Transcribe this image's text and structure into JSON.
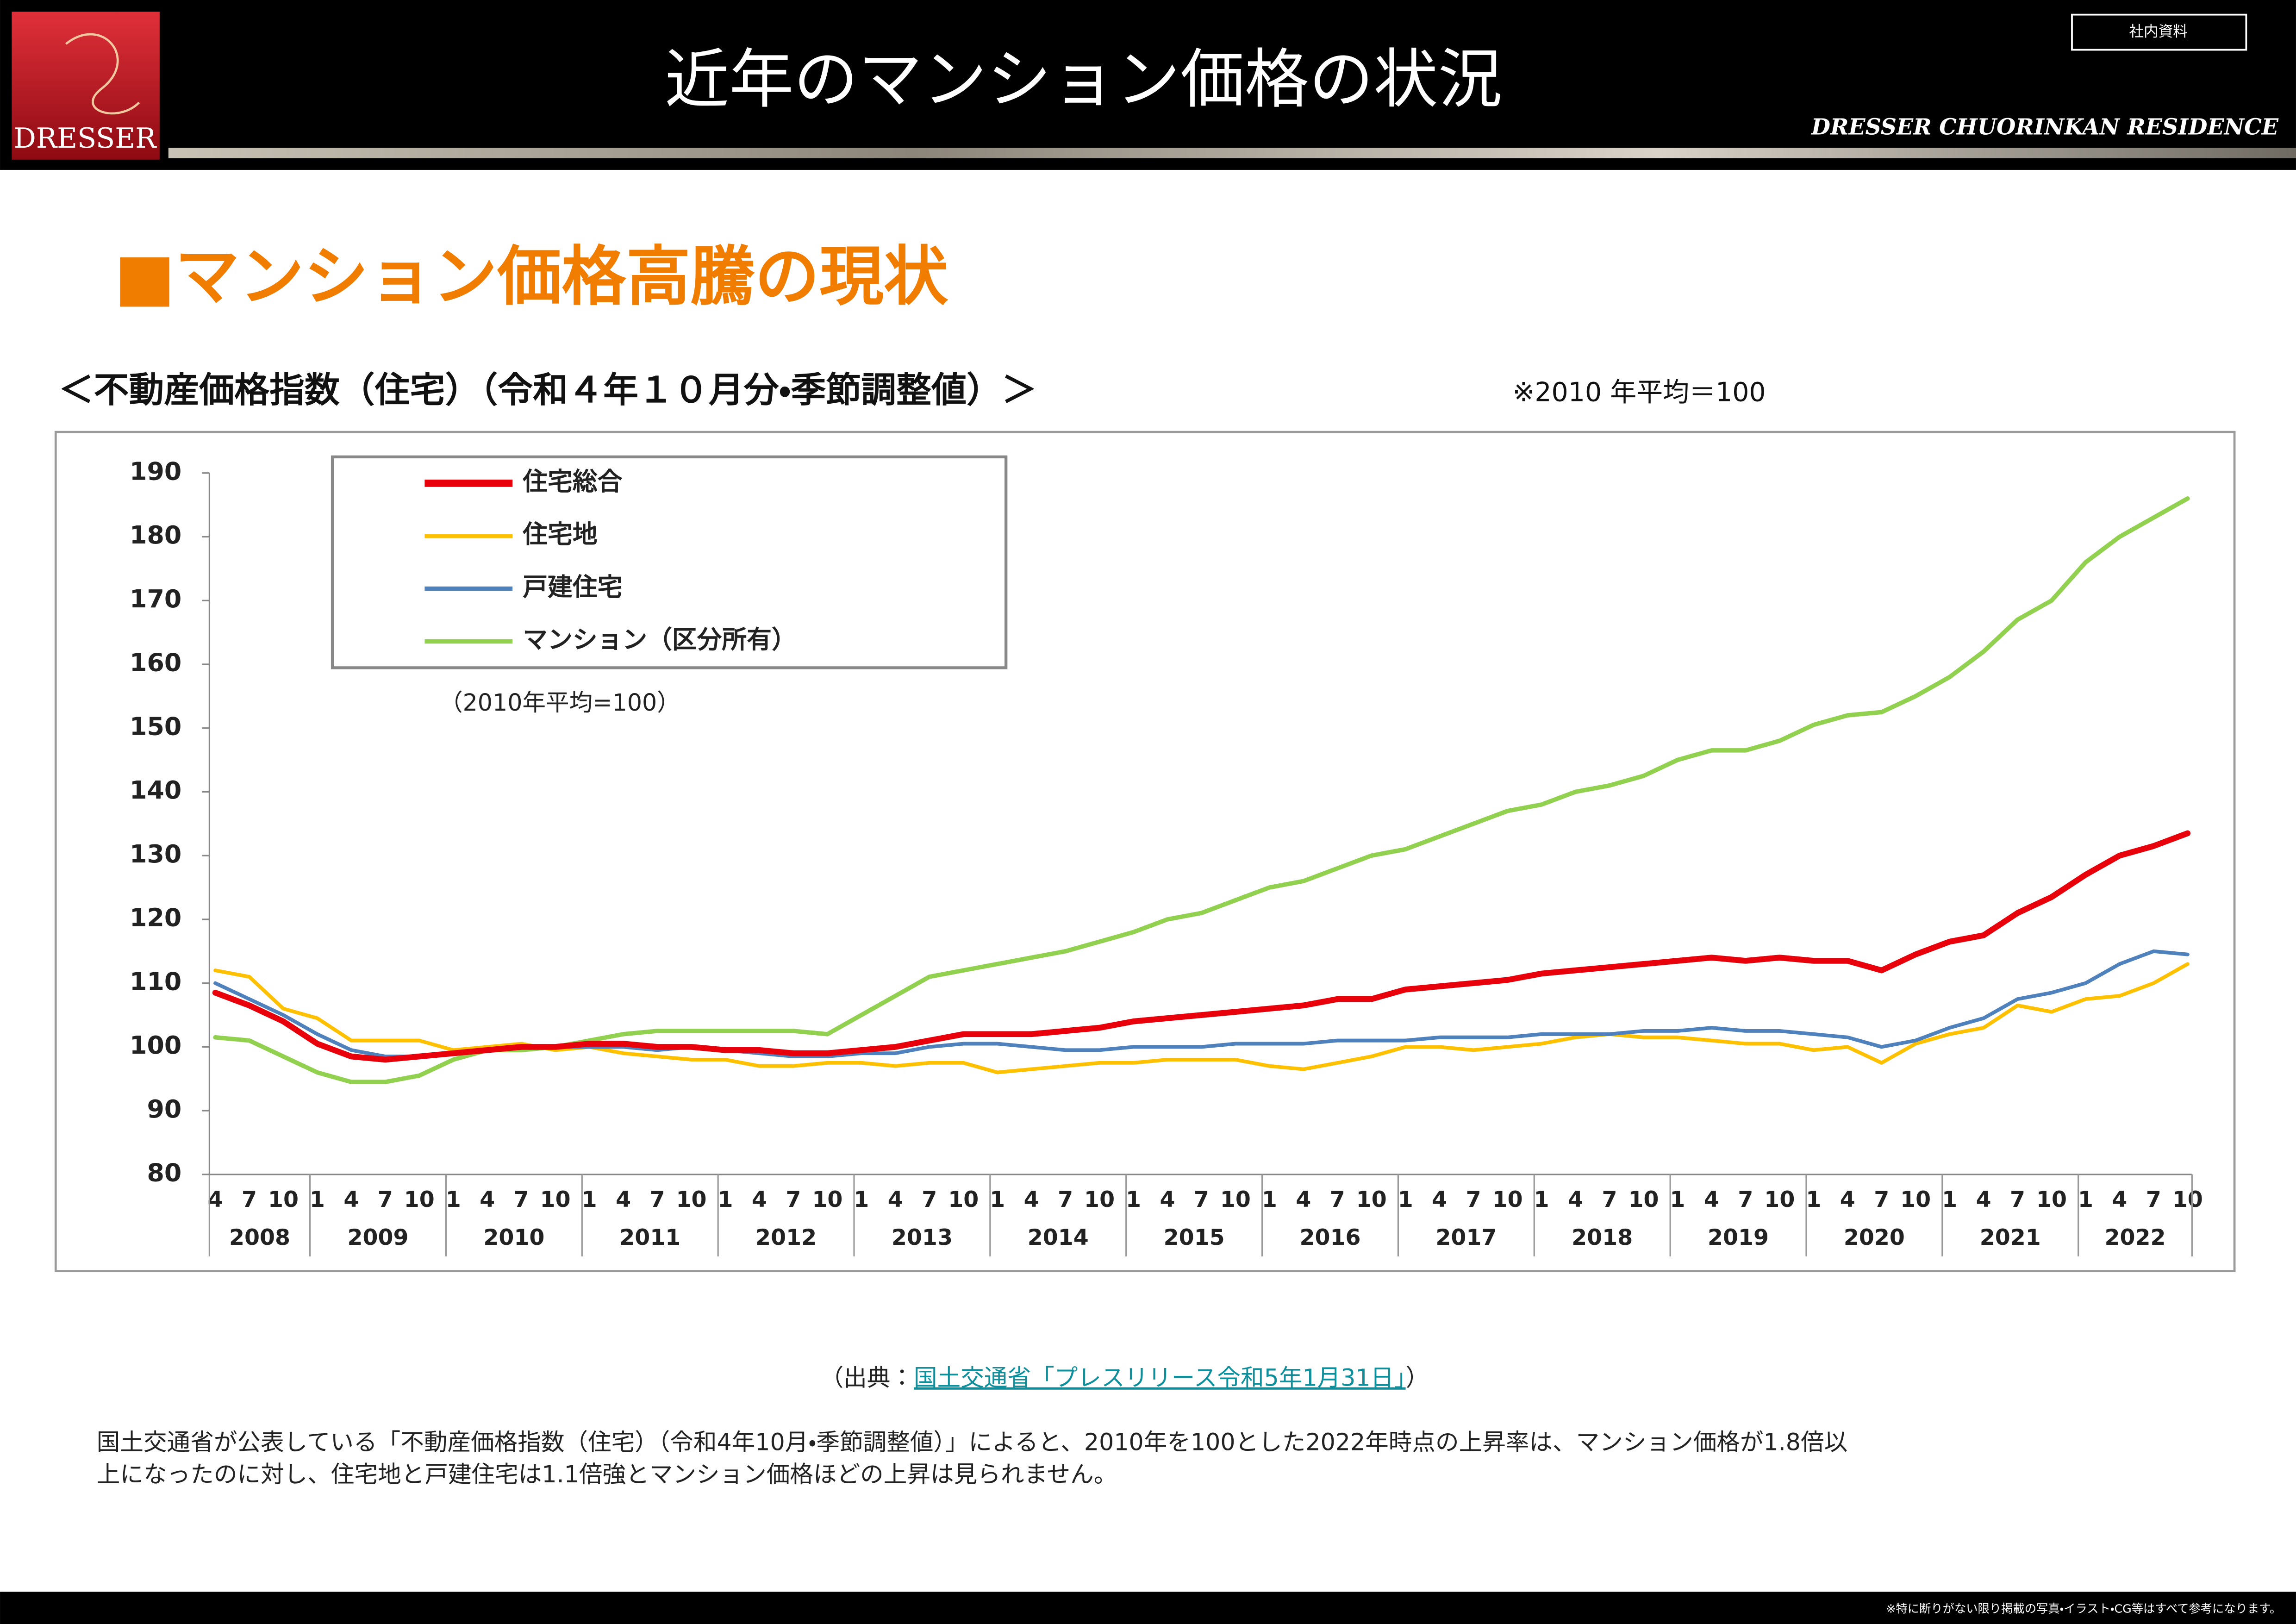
{
  "header": {
    "logo": "DRESSER",
    "title": "近年のマンション価格の状況",
    "badge": "社内資料",
    "residence": "DRESSER CHUORINKAN RESIDENCE"
  },
  "section_title": "■マンション価格高騰の現状",
  "chart_heading": "＜不動産価格指数（住宅）（令和４年１０月分・季節調整値）＞",
  "chart_note": "※2010 年平均＝100",
  "chart_data": {
    "type": "line",
    "annotation": "（2010年平均=100）",
    "years": [
      {
        "label": "2008",
        "months": [
          "4",
          "7",
          "10"
        ]
      },
      {
        "label": "2009",
        "months": [
          "1",
          "4",
          "7",
          "10"
        ]
      },
      {
        "label": "2010",
        "months": [
          "1",
          "4",
          "7",
          "10"
        ]
      },
      {
        "label": "2011",
        "months": [
          "1",
          "4",
          "7",
          "10"
        ]
      },
      {
        "label": "2012",
        "months": [
          "1",
          "4",
          "7",
          "10"
        ]
      },
      {
        "label": "2013",
        "months": [
          "1",
          "4",
          "7",
          "10"
        ]
      },
      {
        "label": "2014",
        "months": [
          "1",
          "4",
          "7",
          "10"
        ]
      },
      {
        "label": "2015",
        "months": [
          "1",
          "4",
          "7",
          "10"
        ]
      },
      {
        "label": "2016",
        "months": [
          "1",
          "4",
          "7",
          "10"
        ]
      },
      {
        "label": "2017",
        "months": [
          "1",
          "4",
          "7",
          "10"
        ]
      },
      {
        "label": "2018",
        "months": [
          "1",
          "4",
          "7",
          "10"
        ]
      },
      {
        "label": "2019",
        "months": [
          "1",
          "4",
          "7",
          "10"
        ]
      },
      {
        "label": "2020",
        "months": [
          "1",
          "4",
          "7",
          "10"
        ]
      },
      {
        "label": "2021",
        "months": [
          "1",
          "4",
          "7",
          "10"
        ]
      },
      {
        "label": "2022",
        "months": [
          "1",
          "4",
          "7",
          "10"
        ]
      }
    ],
    "series": [
      {
        "name": "住宅総合",
        "color": "#e8000b",
        "values": [
          108.5,
          106.5,
          104,
          100.5,
          98.5,
          98,
          98.5,
          99,
          99.5,
          100,
          100,
          100.5,
          100.5,
          100,
          100,
          99.5,
          99.5,
          99,
          99,
          99.5,
          100,
          101,
          102,
          102,
          102,
          102.5,
          103,
          104,
          104.5,
          105,
          105.5,
          106,
          106.5,
          107.5,
          107.5,
          109,
          109.5,
          110,
          110.5,
          111.5,
          112,
          112.5,
          113,
          113.5,
          114,
          113.5,
          114,
          113.5,
          113.5,
          112,
          114.5,
          116.5,
          117.5,
          121,
          123.5,
          127,
          130,
          131.5,
          133.5
        ]
      },
      {
        "name": "住宅地",
        "color": "#ffc000",
        "values": [
          112,
          111,
          106,
          104.5,
          101,
          101,
          101,
          99.5,
          100,
          100.5,
          99.5,
          100,
          99,
          98.5,
          98,
          98,
          97,
          97,
          97.5,
          97.5,
          97,
          97.5,
          97.5,
          96,
          96.5,
          97,
          97.5,
          97.5,
          98,
          98,
          98,
          97,
          96.5,
          97.5,
          98.5,
          100,
          100,
          99.5,
          100,
          100.5,
          101.5,
          102,
          101.5,
          101.5,
          101,
          100.5,
          100.5,
          99.5,
          100,
          97.5,
          100.5,
          102,
          103,
          106.5,
          105.5,
          107.5,
          108,
          110,
          113
        ]
      },
      {
        "name": "戸建住宅",
        "color": "#4f81bd",
        "values": [
          110,
          107.5,
          105,
          102,
          99.5,
          98.5,
          98.5,
          99,
          99.5,
          100,
          100,
          100,
          100,
          99.5,
          100,
          99.5,
          99,
          98.5,
          98.5,
          99,
          99,
          100,
          100.5,
          100.5,
          100,
          99.5,
          99.5,
          100,
          100,
          100,
          100.5,
          100.5,
          100.5,
          101,
          101,
          101,
          101.5,
          101.5,
          101.5,
          102,
          102,
          102,
          102.5,
          102.5,
          103,
          102.5,
          102.5,
          102,
          101.5,
          100,
          101,
          103,
          104.5,
          107.5,
          108.5,
          110,
          113,
          115,
          114.5
        ]
      },
      {
        "name": "マンション（区分所有）",
        "color": "#92d050",
        "values": [
          101.5,
          101,
          98.5,
          96,
          94.5,
          94.5,
          95.5,
          98,
          99.5,
          99.5,
          100,
          101,
          102,
          102.5,
          102.5,
          102.5,
          102.5,
          102.5,
          102,
          105,
          108,
          111,
          112,
          113,
          114,
          115,
          116.5,
          118,
          120,
          121,
          123,
          125,
          126,
          128,
          130,
          131,
          133,
          135,
          137,
          138,
          140,
          141,
          142.5,
          145,
          146.5,
          146.5,
          148,
          150.5,
          152,
          152.5,
          155,
          158,
          162,
          167,
          170,
          176,
          180,
          183,
          186
        ]
      }
    ],
    "ylim": [
      80,
      190
    ],
    "yticks": [
      80,
      90,
      100,
      110,
      120,
      130,
      140,
      150,
      160,
      170,
      180,
      190
    ],
    "legend": "upper-left",
    "grid": false
  },
  "source": {
    "prefix": "（出典：",
    "link": "国土交通省「プレスリリース令和5年1月31日」",
    "suffix": "）"
  },
  "body": [
    "国土交通省が公表している「不動産価格指数（住宅）（令和4年10月・季節調整値）」によると、2010年を100とした2022年時点の上昇率は、マンション価格が1.8倍以",
    "上になったのに対し、住宅地と戸建住宅は1.1倍強とマンション価格ほどの上昇は見られません。"
  ],
  "footer": "※特に断りがない限り掲載の写真・イラスト・CG等はすべて参考になります。"
}
